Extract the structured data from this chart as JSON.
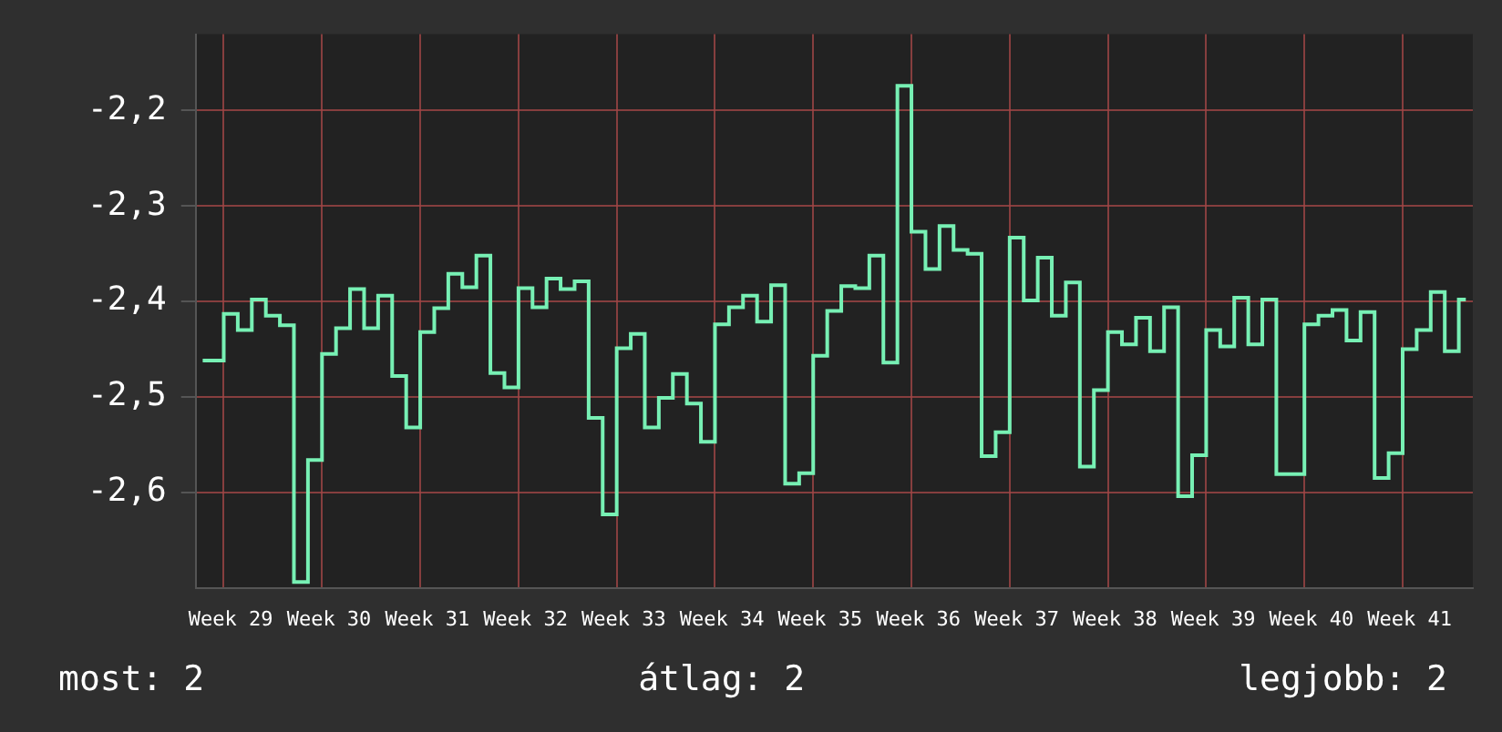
{
  "chart_data": {
    "type": "step",
    "ylim": [
      -2.7,
      -2.12
    ],
    "categories": [
      null,
      null,
      "Week 29",
      null,
      null,
      null,
      null,
      null,
      null,
      "Week 30",
      null,
      null,
      null,
      null,
      null,
      null,
      "Week 31",
      null,
      null,
      null,
      null,
      null,
      null,
      "Week 32",
      null,
      null,
      null,
      null,
      null,
      null,
      "Week 33",
      null,
      null,
      null,
      null,
      null,
      null,
      "Week 34",
      null,
      null,
      null,
      null,
      null,
      null,
      "Week 35",
      null,
      null,
      null,
      null,
      null,
      null,
      "Week 36",
      null,
      null,
      null,
      null,
      null,
      null,
      "Week 37",
      null,
      null,
      null,
      null,
      null,
      null,
      "Week 38",
      null,
      null,
      null,
      null,
      null,
      null,
      "Week 39",
      null,
      null,
      null,
      null,
      null,
      null,
      "Week 40",
      null,
      null,
      null,
      null,
      null,
      null,
      "Week 41",
      null,
      null,
      null,
      null
    ],
    "yticks": [
      {
        "value": -2.6,
        "label": "-2,6"
      },
      {
        "value": -2.5,
        "label": "-2,5"
      },
      {
        "value": -2.4,
        "label": "-2,4"
      },
      {
        "value": -2.3,
        "label": "-2,3"
      },
      {
        "value": -2.2,
        "label": "-2,2"
      }
    ],
    "grid": true,
    "legend": false,
    "marker": "none",
    "line_style": "solid",
    "annotations": [
      "most: 2",
      "átlag: 2",
      "legjobb: 2"
    ],
    "series": [
      {
        "color": "#77f0b4",
        "values": [
          -2.462,
          -2.462,
          -2.413,
          -2.43,
          -2.398,
          -2.415,
          -2.425,
          -2.694,
          -2.566,
          -2.455,
          -2.428,
          -2.387,
          -2.428,
          -2.394,
          -2.478,
          -2.532,
          -2.432,
          -2.407,
          -2.371,
          -2.385,
          -2.352,
          -2.475,
          -2.49,
          -2.386,
          -2.406,
          -2.376,
          -2.387,
          -2.379,
          -2.522,
          -2.623,
          -2.449,
          -2.434,
          -2.532,
          -2.501,
          -2.476,
          -2.507,
          -2.547,
          -2.424,
          -2.406,
          -2.394,
          -2.421,
          -2.383,
          -2.591,
          -2.58,
          -2.457,
          -2.41,
          -2.384,
          -2.386,
          -2.352,
          -2.464,
          -2.174,
          -2.327,
          -2.366,
          -2.321,
          -2.346,
          -2.35,
          -2.562,
          -2.537,
          -2.333,
          -2.399,
          -2.354,
          -2.415,
          -2.38,
          -2.573,
          -2.493,
          -2.432,
          -2.445,
          -2.417,
          -2.452,
          -2.406,
          -2.604,
          -2.561,
          -2.43,
          -2.447,
          -2.396,
          -2.445,
          -2.398,
          -2.581,
          -2.581,
          -2.424,
          -2.415,
          -2.409,
          -2.441,
          -2.411,
          -2.585,
          -2.559,
          -2.45,
          -2.43,
          -2.39,
          -2.452,
          -2.398
        ]
      }
    ]
  }
}
